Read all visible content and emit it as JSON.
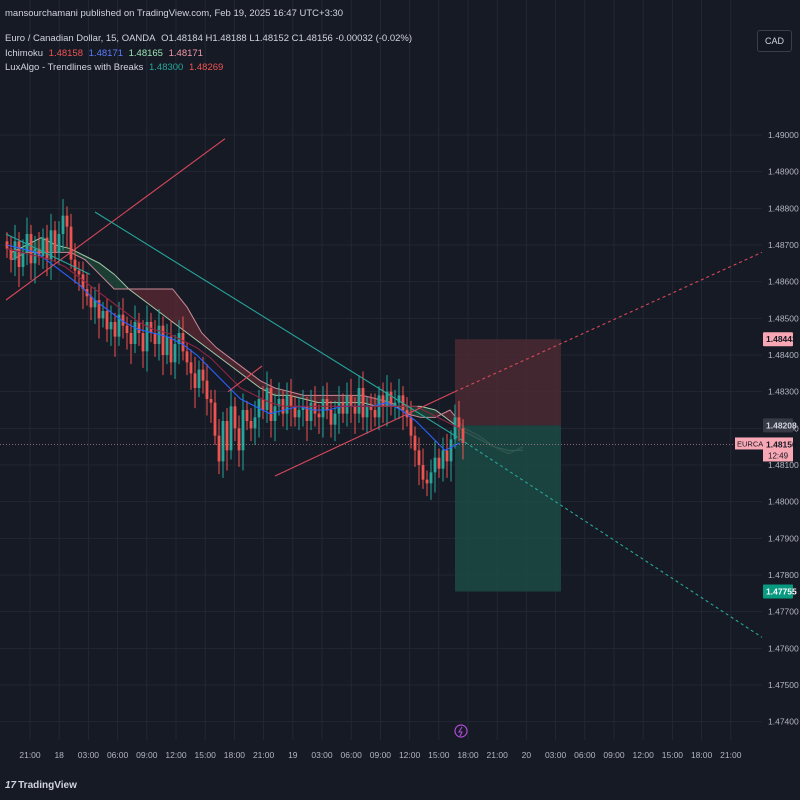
{
  "header": {
    "publish_line": "mansourchamani published on TradingView.com, Feb 19, 2025 16:47 UTC+3:30",
    "symbol_line": {
      "name": "Euro / Canadian Dollar, 15, OANDA",
      "ohlc": "O1.48184 H1.48188 L1.48152 C1.48156 -0.00032 (-0.02%)"
    },
    "ichimoku": {
      "label": "Ichimoku",
      "v1": "1.48158",
      "v2": "1.48171",
      "v3": "1.48165",
      "v4": "1.48171"
    },
    "luxalgo": {
      "label": "LuxAlgo - Trendlines with Breaks",
      "v1": "1.48300",
      "v2": "1.48269"
    }
  },
  "currency_button": "CAD",
  "footer": {
    "logo_mark": "17",
    "logo_text": "TradingView"
  },
  "colors": {
    "background": "#161a25",
    "up": "#26a69a",
    "down": "#ef5350",
    "tenkan": "#2962ff",
    "kijun": "#b71c3c",
    "lagging": "#9e9e9e",
    "cloud_bear": "#5c2a33",
    "cloud_bull": "#1f4a3a",
    "target_zone": "#1b4b45",
    "stop_zone": "#4a2a33",
    "last_price": "#f7a8b4",
    "stop_label": "#f7a8b4",
    "target_label": "#089981"
  },
  "chart_data": {
    "type": "candlestick",
    "symbol": "EURCAD",
    "timeframe": "15",
    "ylim": [
      1.4735,
      1.4915
    ],
    "yticks": [
      1.49,
      1.489,
      1.488,
      1.487,
      1.486,
      1.485,
      1.484,
      1.483,
      1.482,
      1.481,
      1.48,
      1.479,
      1.478,
      1.477,
      1.476,
      1.475,
      1.474
    ],
    "ytick_labels": [
      "1.49000",
      "1.48900",
      "1.48800",
      "1.48700",
      "1.48600",
      "1.48500",
      "1.48400",
      "1.48300",
      "1.48200",
      "1.48100",
      "1.48000",
      "1.47900",
      "1.47800",
      "1.47700",
      "1.47600",
      "1.47500",
      "1.47400"
    ],
    "xticks": [
      "21:00",
      "18",
      "03:00",
      "06:00",
      "09:00",
      "12:00",
      "15:00",
      "18:00",
      "21:00",
      "19",
      "03:00",
      "06:00",
      "09:00",
      "12:00",
      "15:00",
      "18:00",
      "21:00",
      "20",
      "03:00",
      "06:00",
      "09:00",
      "12:00",
      "15:00",
      "18:00",
      "21:00"
    ],
    "last_price": {
      "symbol": "EURCAD",
      "value": "1.48156",
      "countdown": "12:49"
    },
    "price_labels": [
      {
        "value": "1.48443",
        "role": "stop"
      },
      {
        "value": "1.48208",
        "role": "entry"
      },
      {
        "value": "1.47755",
        "role": "target"
      }
    ],
    "position": {
      "type": "short",
      "entry": 1.48208,
      "stop": 1.48443,
      "target": 1.47755
    },
    "series": [
      {
        "type": "close",
        "values": [
          1.4869,
          1.4866,
          1.4871,
          1.4864,
          1.4868,
          1.4873,
          1.4865,
          1.4869,
          1.4867,
          1.4872,
          1.4866,
          1.4874,
          1.4868,
          1.4873,
          1.4878,
          1.4875,
          1.4866,
          1.4863,
          1.4862,
          1.4858,
          1.4856,
          1.4853,
          1.4855,
          1.485,
          1.4852,
          1.4847,
          1.4849,
          1.4845,
          1.4851,
          1.4848,
          1.4846,
          1.4843,
          1.4849,
          1.4846,
          1.4841,
          1.4849,
          1.4846,
          1.4843,
          1.4848,
          1.484,
          1.4845,
          1.4838,
          1.4843,
          1.4846,
          1.4841,
          1.4838,
          1.4835,
          1.4831,
          1.4836,
          1.4833,
          1.4828,
          1.4827,
          1.4818,
          1.4811,
          1.4822,
          1.4814,
          1.4826,
          1.482,
          1.4814,
          1.4825,
          1.4822,
          1.482,
          1.4823,
          1.4828,
          1.4825,
          1.4831,
          1.4822,
          1.4826,
          1.4828,
          1.4824,
          1.4829,
          1.4826,
          1.4823,
          1.4825,
          1.4826,
          1.4822,
          1.4827,
          1.4824,
          1.4823,
          1.4828,
          1.4825,
          1.4821,
          1.4824,
          1.4827,
          1.4824,
          1.4829,
          1.4826,
          1.4824,
          1.4831,
          1.4823,
          1.4826,
          1.4825,
          1.4823,
          1.4829,
          1.4826,
          1.483,
          1.4826,
          1.4827,
          1.4829,
          1.4825,
          1.4823,
          1.4818,
          1.4814,
          1.481,
          1.4806,
          1.4805,
          1.4808,
          1.4812,
          1.4809,
          1.4814,
          1.4811,
          1.4817,
          1.4823,
          1.482,
          1.4816
        ]
      },
      {
        "type": "ichimoku_tenkan",
        "values": [
          1.487,
          1.4869,
          1.4868,
          1.4865,
          1.4862,
          1.4859,
          1.4855,
          1.4852,
          1.4849,
          1.4847,
          1.4846,
          1.4845,
          1.4843,
          1.484,
          1.4836,
          1.4832,
          1.4828,
          1.4826,
          1.4824,
          1.4825,
          1.4826,
          1.4825,
          1.4825,
          1.4826,
          1.4826,
          1.4826,
          1.4827,
          1.4825,
          1.4822,
          1.4818,
          1.4814,
          1.4816
        ]
      },
      {
        "type": "ichimoku_kijun",
        "values": [
          1.4869,
          1.4868,
          1.4867,
          1.4866,
          1.4864,
          1.4861,
          1.4858,
          1.4855,
          1.4852,
          1.4849,
          1.4847,
          1.4846,
          1.4844,
          1.4842,
          1.4839,
          1.4835,
          1.4831,
          1.4829,
          1.4827,
          1.4826,
          1.4826,
          1.4826,
          1.4826,
          1.4826,
          1.4826,
          1.4826,
          1.4826,
          1.4826,
          1.4826,
          1.4824,
          1.4822,
          1.482
        ]
      },
      {
        "type": "span_a",
        "values": [
          1.4868,
          1.487,
          1.4872,
          1.487,
          1.4869,
          1.4867,
          1.4865,
          1.4862,
          1.4858,
          1.4855,
          1.4852,
          1.4849,
          1.4846,
          1.4843,
          1.484,
          1.4837,
          1.4834,
          1.4831,
          1.4829,
          1.4829,
          1.4828,
          1.4827,
          1.4827,
          1.4827,
          1.4827,
          1.4826,
          1.4826,
          1.4826,
          1.4826,
          1.4825,
          1.4822,
          1.4819,
          1.4817,
          1.4815,
          1.4814,
          1.4814
        ]
      },
      {
        "type": "span_b",
        "values": [
          1.4866,
          1.4868,
          1.4868,
          1.4868,
          1.4868,
          1.4866,
          1.4862,
          1.4858,
          1.4858,
          1.4858,
          1.4858,
          1.4858,
          1.4853,
          1.4846,
          1.4842,
          1.4839,
          1.4836,
          1.4833,
          1.4831,
          1.483,
          1.4829,
          1.4829,
          1.4829,
          1.4829,
          1.4829,
          1.4828,
          1.4827,
          1.4824,
          1.4823,
          1.4823,
          1.4825,
          1.482,
          1.4818,
          1.4815,
          1.4813,
          1.4815
        ]
      }
    ]
  }
}
